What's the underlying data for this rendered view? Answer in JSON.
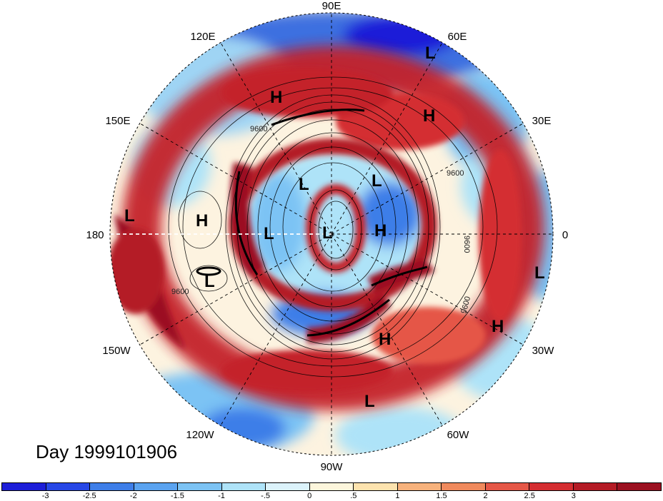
{
  "map": {
    "projection": "north polar stereographic",
    "longitude_labels": [
      "90E",
      "60E",
      "30E",
      "0",
      "30W",
      "60W",
      "90W",
      "120W",
      "150W",
      "180",
      "150E",
      "120E"
    ],
    "pressure_systems": [
      {
        "type": "L"
      },
      {
        "type": "H"
      },
      {
        "type": "H"
      },
      {
        "type": "L"
      },
      {
        "type": "L"
      },
      {
        "type": "L"
      },
      {
        "type": "H"
      },
      {
        "type": "L"
      },
      {
        "type": "L"
      },
      {
        "type": "H"
      },
      {
        "type": "L"
      },
      {
        "type": "H"
      },
      {
        "type": "H"
      },
      {
        "type": "L"
      },
      {
        "type": "L"
      }
    ],
    "contour_labels": [
      "9600",
      "9600",
      "9600",
      "9600",
      "9600"
    ]
  },
  "title": "Day 1999101906",
  "colorbar": {
    "colors": [
      "#1d1ed8",
      "#2747e6",
      "#3e7ee8",
      "#5aa3f0",
      "#7cc3f4",
      "#aee3f8",
      "#dcf3fb",
      "#fdf6dc",
      "#fde3ae",
      "#f7b27c",
      "#f08a5d",
      "#e55747",
      "#d42d31",
      "#b41b25",
      "#9b1020"
    ],
    "tick_labels": [
      "-3",
      "-2.5",
      "-2",
      "-1.5",
      "-1",
      "-.5",
      "0",
      ".5",
      "1",
      "1.5",
      "2",
      "2.5",
      "3"
    ]
  }
}
